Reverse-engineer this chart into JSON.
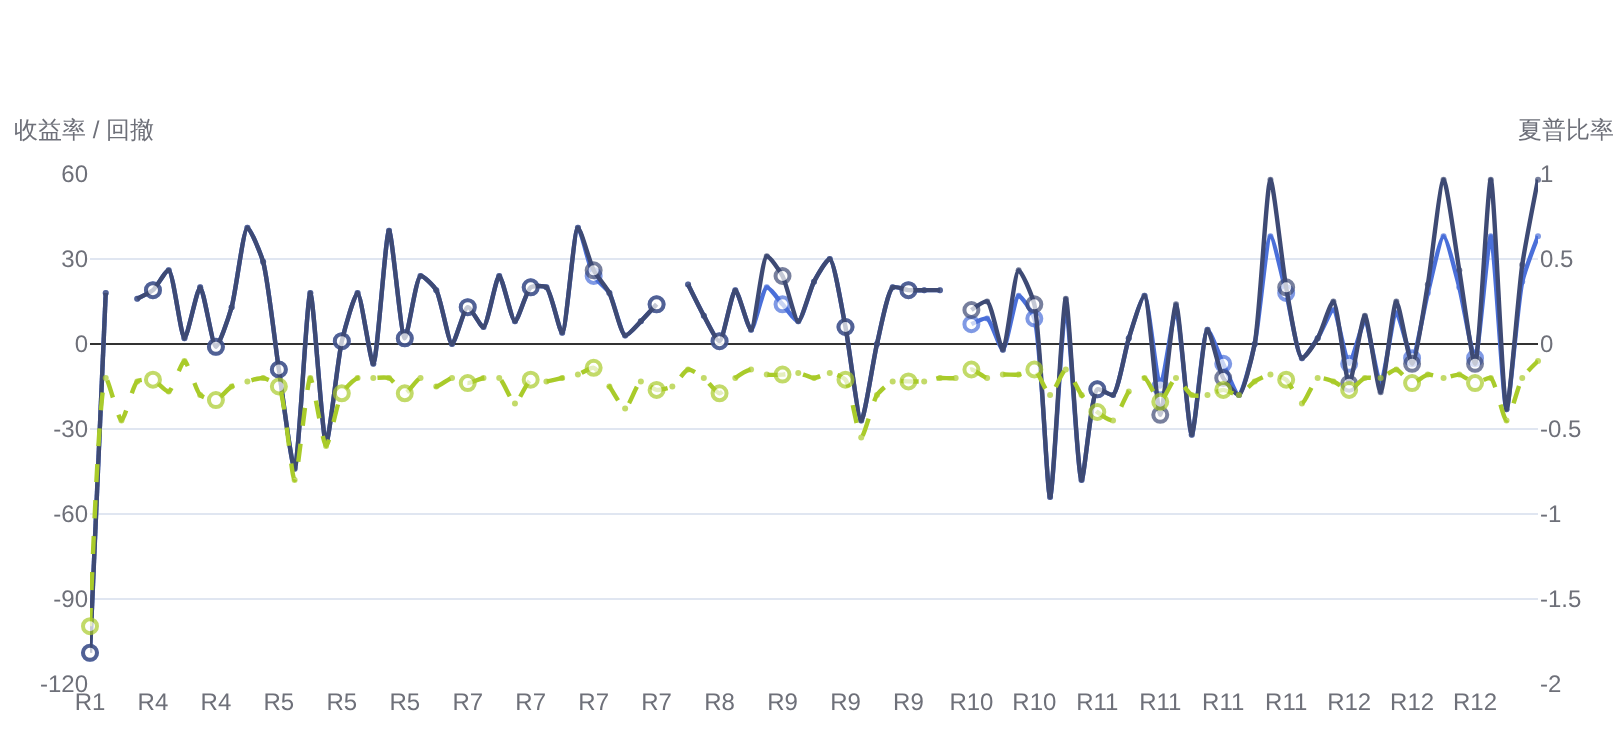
{
  "chart_data": {
    "type": "line",
    "ylabel": "收益率 / 回撤",
    "y2label": "夏普比率",
    "categories": [
      "R1",
      null,
      null,
      null,
      "R4",
      null,
      null,
      null,
      "R4",
      null,
      null,
      null,
      "R5",
      null,
      null,
      null,
      "R5",
      null,
      null,
      null,
      "R5",
      null,
      null,
      null,
      "R7",
      null,
      null,
      null,
      "R7",
      null,
      null,
      null,
      "R7",
      null,
      null,
      null,
      "R7",
      null,
      null,
      null,
      "R8",
      null,
      null,
      null,
      "R9",
      null,
      null,
      null,
      "R9",
      null,
      null,
      null,
      "R9",
      null,
      null,
      null,
      "R10",
      null,
      null,
      null,
      "R10",
      null,
      null,
      null,
      "R11",
      null,
      null,
      null,
      "R11",
      null,
      null,
      null,
      "R11",
      null,
      null,
      null,
      "R11",
      null,
      null,
      null,
      "R12",
      null,
      null,
      null,
      "R12",
      null,
      null,
      null,
      "R12",
      null,
      null,
      null,
      null
    ],
    "ylim": [
      -120,
      60
    ],
    "yticks": [
      -120,
      -90,
      -60,
      -30,
      0,
      30,
      60
    ],
    "y2lim": [
      -2,
      1
    ],
    "y2ticks": [
      -2,
      -1.5,
      -1,
      -0.5,
      0,
      0.5,
      1
    ],
    "grid": "y",
    "marker": "circle",
    "series": [
      {
        "color": "#4a6fd9",
        "line_style": "solid",
        "values": [
          -109,
          18,
          null,
          16,
          19,
          26,
          2,
          20,
          -1,
          13,
          41,
          29,
          -9,
          -44,
          18,
          -35,
          1,
          18,
          -7,
          40,
          2,
          24,
          19,
          0,
          13,
          6,
          24,
          8,
          20,
          20,
          4,
          41,
          24,
          18,
          3,
          8,
          14,
          null,
          21,
          10,
          1,
          19,
          5,
          20,
          14,
          8,
          22,
          30,
          6,
          -27,
          0,
          20,
          19,
          19,
          19,
          null,
          7,
          9,
          -2,
          17,
          9,
          -54,
          13,
          -48,
          -16,
          -18,
          2,
          17,
          -15,
          12,
          -32,
          5,
          -7,
          -18,
          0,
          38,
          18,
          -5,
          2,
          12,
          -7,
          8,
          -14,
          11,
          -5,
          18,
          38,
          20,
          -5,
          38,
          -23,
          22,
          38
        ]
      },
      {
        "color": "#3e4a74",
        "line_style": "solid",
        "values": [
          -109,
          18,
          null,
          16,
          19,
          26,
          2,
          20,
          -1,
          13,
          41,
          29,
          -9,
          -44,
          18,
          -35,
          1,
          18,
          -7,
          40,
          2,
          24,
          19,
          0,
          13,
          6,
          24,
          8,
          20,
          20,
          4,
          41,
          26,
          18,
          3,
          8,
          14,
          null,
          21,
          10,
          1,
          19,
          5,
          31,
          24,
          8,
          22,
          30,
          6,
          -27,
          0,
          20,
          19,
          19,
          19,
          null,
          12,
          15,
          -2,
          26,
          14,
          -54,
          16,
          -48,
          -16,
          -18,
          2,
          17,
          -25,
          14,
          -32,
          5,
          -12,
          -18,
          0,
          58,
          20,
          -5,
          2,
          15,
          -14,
          10,
          -17,
          15,
          -7,
          21,
          58,
          26,
          -7,
          58,
          -23,
          28,
          58
        ]
      },
      {
        "color": "#a9cb2a",
        "line_style": "dashed",
        "axis": "y2",
        "values": [
          -1.66,
          -0.2,
          -0.45,
          -0.22,
          -0.21,
          -0.28,
          -0.1,
          -0.3,
          -0.33,
          -0.25,
          -0.22,
          -0.2,
          -0.25,
          -0.8,
          -0.2,
          -0.6,
          -0.29,
          -0.2,
          -0.2,
          -0.2,
          -0.29,
          -0.2,
          -0.25,
          -0.2,
          -0.23,
          -0.2,
          -0.2,
          -0.35,
          -0.21,
          -0.22,
          -0.2,
          -0.18,
          -0.14,
          -0.25,
          -0.38,
          -0.22,
          -0.27,
          -0.25,
          -0.15,
          -0.2,
          -0.29,
          -0.2,
          -0.15,
          -0.18,
          -0.18,
          -0.17,
          -0.2,
          -0.17,
          -0.21,
          -0.55,
          -0.3,
          -0.22,
          -0.22,
          -0.22,
          -0.2,
          -0.2,
          -0.15,
          -0.2,
          -0.18,
          -0.18,
          -0.15,
          -0.3,
          -0.15,
          -0.3,
          -0.4,
          -0.45,
          -0.28,
          -0.2,
          -0.34,
          -0.2,
          -0.3,
          -0.3,
          -0.27,
          -0.3,
          -0.22,
          -0.18,
          -0.21,
          -0.35,
          -0.2,
          -0.22,
          -0.27,
          -0.2,
          -0.2,
          -0.15,
          -0.23,
          -0.18,
          -0.2,
          -0.18,
          -0.23,
          -0.2,
          -0.45,
          -0.2,
          -0.1
        ]
      }
    ]
  }
}
